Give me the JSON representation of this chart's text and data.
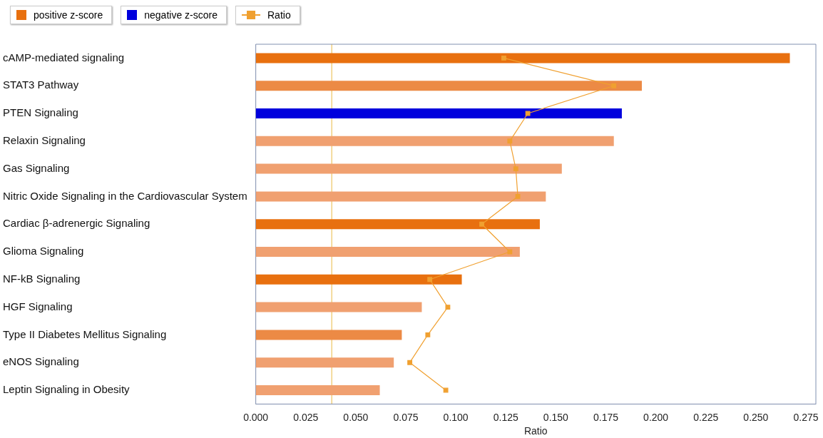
{
  "chart_data": {
    "type": "bar",
    "orientation": "horizontal",
    "stacked": true,
    "xlabel": "Ratio",
    "categories": [
      "cAMP-mediated signaling",
      "STAT3 Pathway",
      "PTEN Signaling",
      "Relaxin Signaling",
      "Gas Signaling",
      "Nitric Oxide Signaling in the Cardiovascular System",
      "Cardiac β-adrenergic Signaling",
      "Glioma Signaling",
      "NF-kB Signaling",
      "HGF Signaling",
      "Type II Diabetes Mellitus Signaling",
      "eNOS Signaling",
      "Leptin Signaling in Obesity"
    ],
    "series": [
      {
        "name": "positive z-score",
        "color": "#e8700f",
        "colors": [
          "#e8700f",
          "#ec8a45",
          null,
          "#f0a070",
          "#f0a070",
          "#f0a070",
          "#e8700f",
          "#f0a070",
          "#e8700f",
          "#f0a070",
          "#ec8a45",
          "#f0a070",
          "#f0a070"
        ],
        "values": [
          0.267,
          0.193,
          null,
          0.179,
          0.153,
          0.145,
          0.142,
          0.132,
          0.103,
          0.083,
          0.073,
          0.069,
          0.062
        ]
      },
      {
        "name": "negative z-score",
        "color": "#0000dd",
        "values": [
          null,
          null,
          0.183,
          null,
          null,
          null,
          null,
          null,
          null,
          null,
          null,
          null,
          null
        ]
      },
      {
        "name": "Ratio",
        "type": "line",
        "color": "#f0a030",
        "marker": "square",
        "values": [
          0.124,
          0.179,
          0.136,
          0.127,
          0.13,
          0.131,
          0.113,
          0.127,
          0.087,
          0.096,
          0.086,
          0.077,
          0.095
        ]
      }
    ],
    "xlim": [
      0,
      0.28
    ],
    "xticks": [
      {
        "value": 0,
        "label": "0.000"
      },
      {
        "value": 0.025,
        "label": "0.025"
      },
      {
        "value": 0.05,
        "label": "0.050"
      },
      {
        "value": 0.075,
        "label": "0.075"
      },
      {
        "value": 0.1,
        "label": "0.100"
      },
      {
        "value": 0.125,
        "label": "0.125"
      },
      {
        "value": 0.15,
        "label": "0.150"
      },
      {
        "value": 0.175,
        "label": "0.175"
      },
      {
        "value": 0.2,
        "label": "0.200"
      },
      {
        "value": 0.225,
        "label": "0.225"
      },
      {
        "value": 0.25,
        "label": "0.250"
      },
      {
        "value": 0.275,
        "label": "0.275"
      }
    ],
    "ref_lines": [
      {
        "axis": "x",
        "value": 0.038,
        "color": "#f0d080"
      }
    ],
    "legend": "top left"
  }
}
